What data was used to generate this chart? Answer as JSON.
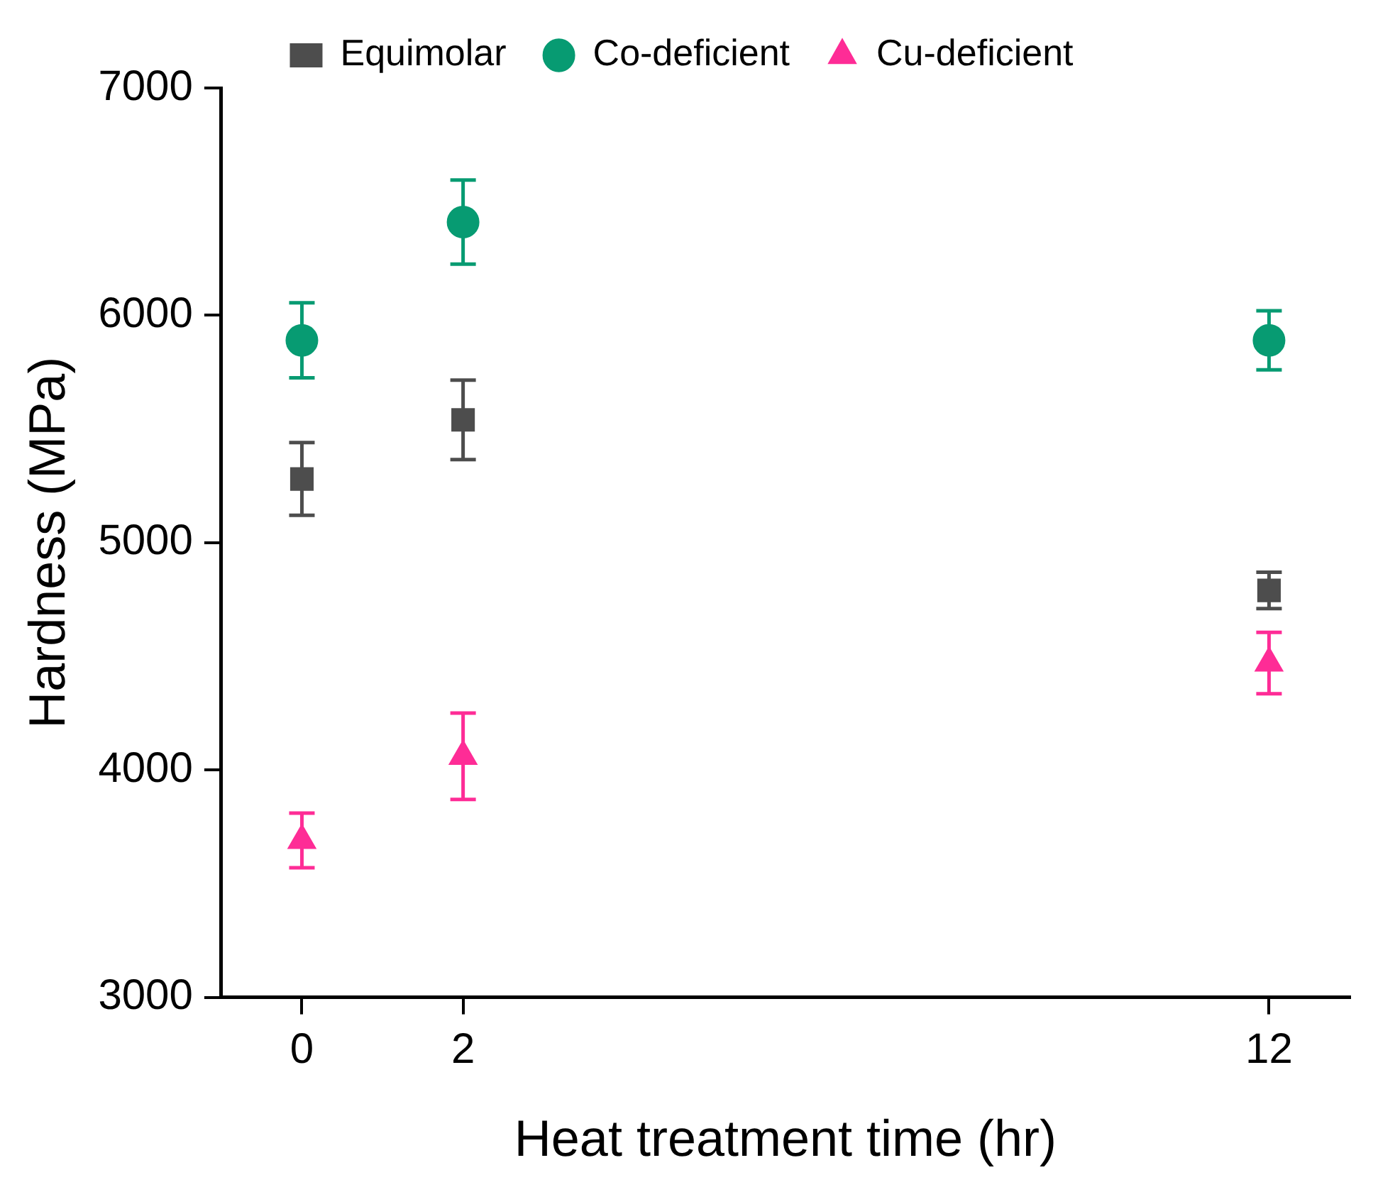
{
  "chart_data": {
    "type": "scatter",
    "xlabel": "Heat treatment time (hr)",
    "ylabel": "Hardness (MPa)",
    "xlim": [
      -1,
      13
    ],
    "xticks": [
      0,
      2,
      12
    ],
    "ylim": [
      3000,
      7000
    ],
    "yticks": [
      3000,
      4000,
      5000,
      6000,
      7000
    ],
    "grid": false,
    "legend": "top",
    "series": [
      {
        "name": "Equimolar",
        "color": "#4d4d4d",
        "marker": "square",
        "x": [
          0,
          2,
          12
        ],
        "values": [
          5280,
          5540,
          4790
        ],
        "errors": [
          160,
          175,
          80
        ]
      },
      {
        "name": "Co-deficient",
        "color": "#079b72",
        "marker": "circle",
        "x": [
          0,
          2,
          12
        ],
        "values": [
          5890,
          6410,
          5890
        ],
        "errors": [
          165,
          185,
          130
        ]
      },
      {
        "name": "Cu-deficient",
        "color": "#fe2c96",
        "marker": "triangle",
        "x": [
          0,
          2,
          12
        ],
        "values": [
          3690,
          4060,
          4470
        ],
        "errors": [
          120,
          190,
          135
        ]
      }
    ]
  }
}
